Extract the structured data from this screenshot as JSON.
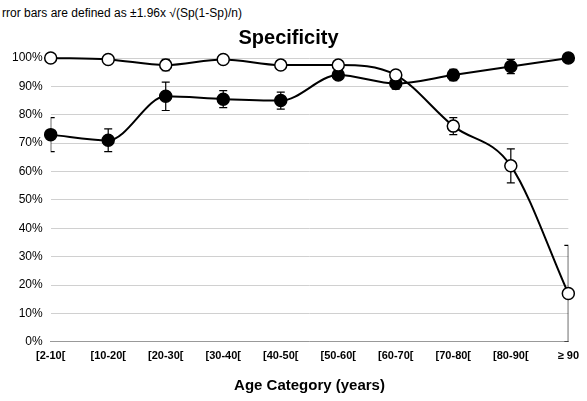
{
  "chart_data": {
    "type": "line",
    "title": "Specificity",
    "annotations": [
      "rror bars are defined as ±1.96x √(Sp(1-Sp)/n)"
    ],
    "x_label": "Age Category (years)",
    "categories": [
      "[2-10[",
      "[10-20[",
      "[20-30[",
      "[30-40[",
      "[40-50[",
      "[50-60[",
      "[60-70[",
      "[70-80[",
      "[80-90[",
      "≥ 90"
    ],
    "series": [
      {
        "color": "#000000",
        "marker": "open_circle",
        "values": [
          100,
          99.5,
          97.5,
          99.5,
          97.5,
          97.5,
          94,
          76,
          62,
          17
        ],
        "errors": [
          0,
          0.5,
          2,
          0.5,
          1.5,
          1,
          1,
          3,
          6,
          17
        ]
      },
      {
        "color": "#000000",
        "marker": "circle",
        "values": [
          73,
          71,
          86.5,
          85.5,
          85,
          94,
          91,
          94,
          97,
          100
        ],
        "errors": [
          6,
          4,
          5,
          3,
          3,
          1.5,
          2,
          2,
          2.5,
          0
        ]
      }
    ],
    "ylim": [
      0,
      100
    ],
    "yticks": [
      {
        "value": 0,
        "label": "0%"
      },
      {
        "value": 10,
        "label": "10%"
      },
      {
        "value": 20,
        "label": "20%"
      },
      {
        "value": 30,
        "label": "30%"
      },
      {
        "value": 40,
        "label": "40%"
      },
      {
        "value": 50,
        "label": "50%"
      },
      {
        "value": 60,
        "label": "60%"
      },
      {
        "value": 70,
        "label": "70%"
      },
      {
        "value": 80,
        "label": "80%"
      },
      {
        "value": 90,
        "label": "90%"
      },
      {
        "value": 100,
        "label": "100%"
      }
    ],
    "grid": true
  }
}
